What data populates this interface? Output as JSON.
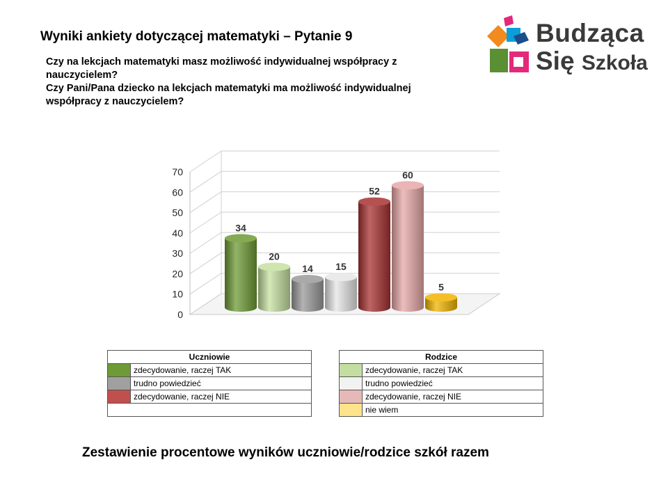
{
  "title": "Wyniki ankiety dotyczącej matematyki – Pytanie 9",
  "questions": [
    "Czy na lekcjach matematyki masz możliwość indywidualnej współpracy z nauczycielem?",
    "Czy Pani/Pana dziecko na lekcjach matematyki ma możliwość indywidualnej współpracy z nauczycielem?"
  ],
  "logo": {
    "line1": "Budząca",
    "line2a": "Się",
    "line2b": "Szkoła"
  },
  "chart_data": {
    "type": "bar",
    "ylim": [
      0,
      70
    ],
    "yticks": [
      "0",
      "10",
      "20",
      "30",
      "40",
      "50",
      "60",
      "70"
    ],
    "categories": [
      "",
      "",
      "",
      "",
      "",
      "",
      ""
    ],
    "values": [
      34,
      20,
      14,
      15,
      52,
      60,
      5
    ],
    "labels": [
      "34",
      "20",
      "14",
      "15",
      "52",
      "60",
      "5"
    ],
    "colors": [
      "#6e9b35",
      "#c5e0a0",
      "#9a9a9a",
      "#e6e6e6",
      "#a83232",
      "#e8a8a8",
      "#f2b400"
    ],
    "grid": true
  },
  "legend_students": {
    "header": "Uczniowie",
    "rows": [
      {
        "label": "zdecydowanie, raczej TAK",
        "color": "#6e9b35"
      },
      {
        "label": "trudno powiedzieć",
        "color": "#a0a0a0"
      },
      {
        "label": "zdecydowanie, raczej NIE",
        "color": "#c0504d"
      }
    ]
  },
  "legend_parents": {
    "header": "Rodzice",
    "rows": [
      {
        "label": "zdecydowanie, raczej TAK",
        "color": "#c3dea0"
      },
      {
        "label": "trudno powiedzieć",
        "color": "#f2f2f2"
      },
      {
        "label": "zdecydowanie, raczej NIE",
        "color": "#e6b9b8"
      },
      {
        "label": "nie wiem",
        "color": "#fde48a"
      }
    ]
  },
  "footer": "Zestawienie procentowe wyników uczniowie/rodzice szkół razem"
}
